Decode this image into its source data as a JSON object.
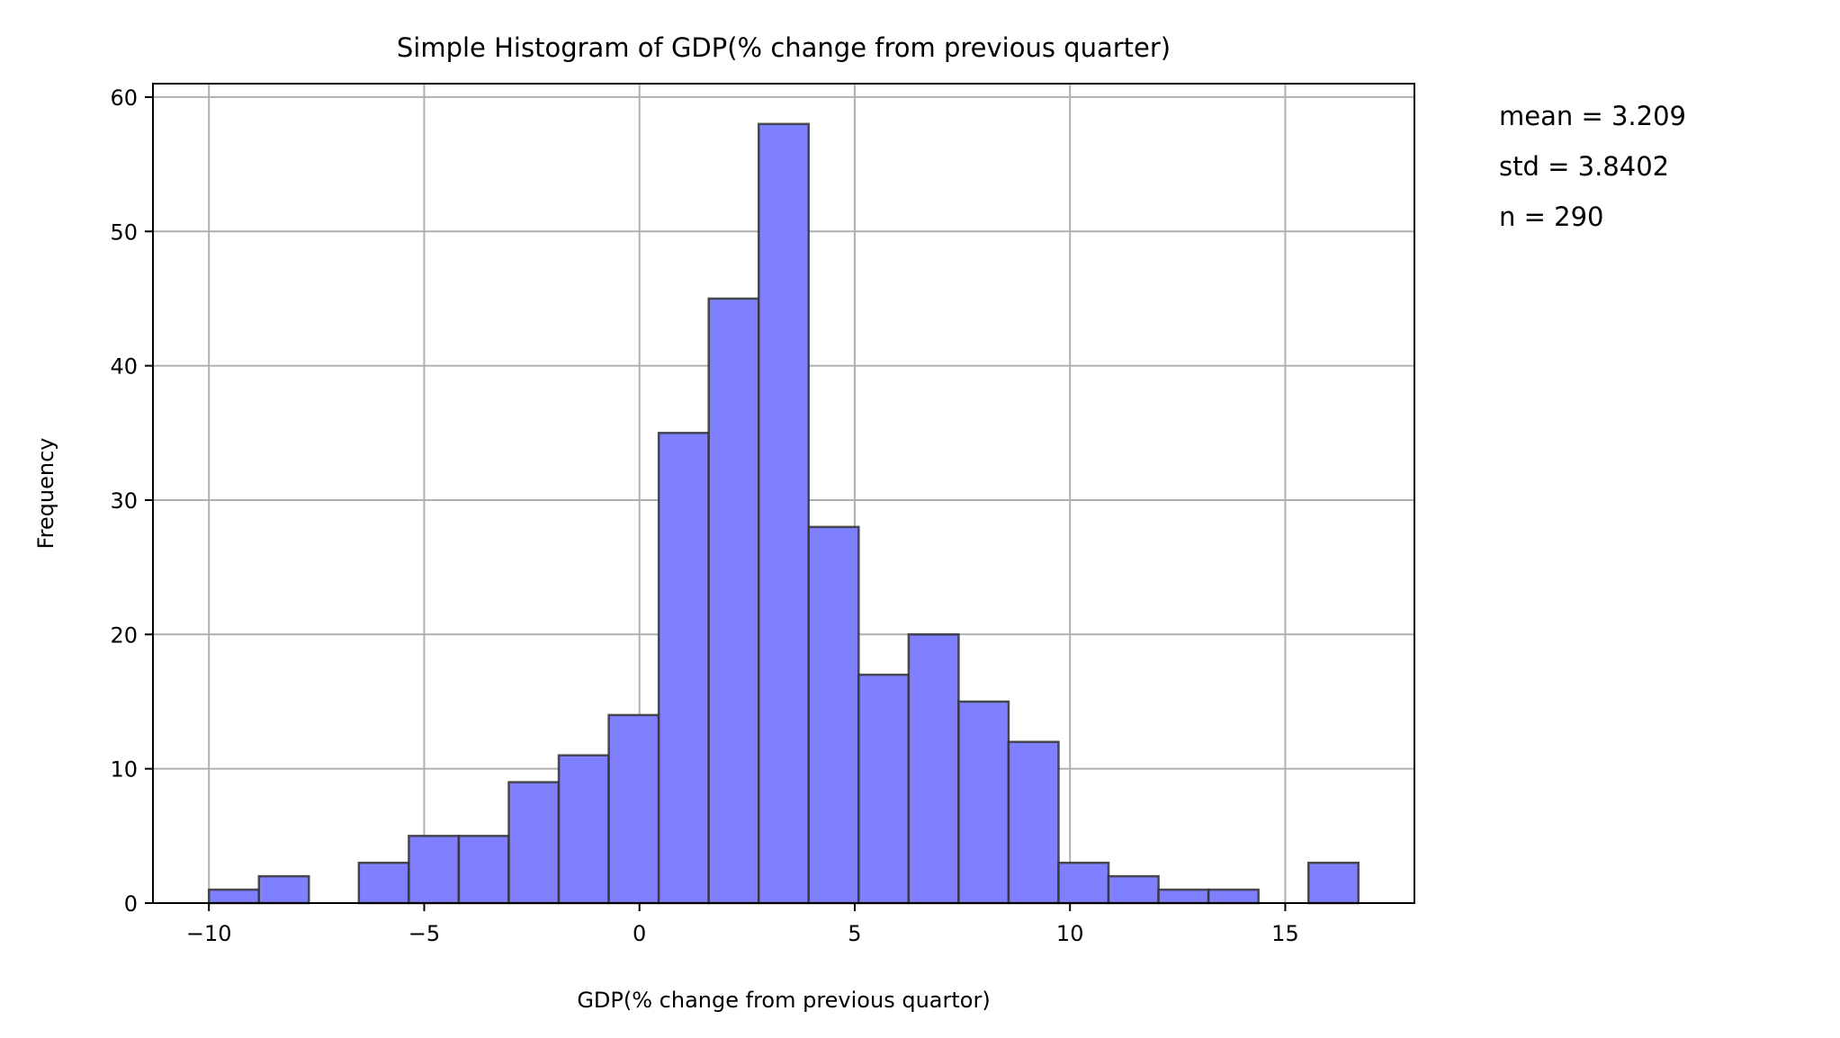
{
  "chart_data": {
    "type": "bar",
    "title": "Simple Histogram of GDP(% change from previous quarter)",
    "xlabel": "GDP(% change from previous quartor)",
    "ylabel": "Frequency",
    "xlim": [
      -11.3,
      18
    ],
    "ylim": [
      0,
      61
    ],
    "xticks": [
      -10,
      -5,
      0,
      5,
      10,
      15
    ],
    "xtick_labels": [
      "−10",
      "−5",
      "0",
      "5",
      "10",
      "15"
    ],
    "yticks": [
      0,
      10,
      20,
      30,
      40,
      50,
      60
    ],
    "ytick_labels": [
      "0",
      "10",
      "20",
      "30",
      "40",
      "50",
      "60"
    ],
    "grid": true,
    "bin_start": -10.0,
    "bin_end": 16.7,
    "bin_count": 23,
    "counts": [
      1,
      2,
      0,
      3,
      5,
      5,
      9,
      11,
      14,
      35,
      45,
      58,
      28,
      17,
      20,
      15,
      12,
      3,
      2,
      1,
      1,
      0,
      3
    ],
    "bar_fill": "#8080ff",
    "bar_edge": "#333333",
    "grid_color": "#b0b0b0",
    "annotation_lines": [
      "mean = 3.209",
      " std = 3.8402",
      " n = 290"
    ]
  }
}
